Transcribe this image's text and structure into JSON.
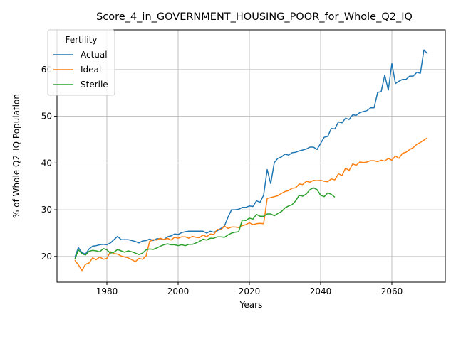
{
  "chart_data": {
    "type": "line",
    "title": "Score_4_in_GOVERNMENT_HOUSING_POOR_for_Whole_Q2_IQ",
    "xlabel": "Years",
    "ylabel": "% of Whole Q2_IQ Population",
    "xlim": [
      1966,
      2075
    ],
    "ylim": [
      14.5,
      68.5
    ],
    "xticks": [
      1980,
      2000,
      2020,
      2040,
      2060
    ],
    "yticks": [
      20,
      30,
      40,
      50,
      60
    ],
    "grid": true,
    "legend": {
      "title": "Fertility",
      "placement": "top-left"
    },
    "series": [
      {
        "name": "Actual",
        "color": "#1f77b4",
        "x": [
          1971,
          1972,
          1973,
          1974,
          1975,
          1976,
          1977,
          1978,
          1979,
          1980,
          1981,
          1982,
          1983,
          1984,
          1985,
          1986,
          1987,
          1988,
          1989,
          1990,
          1991,
          1992,
          1993,
          1994,
          1995,
          1996,
          1997,
          1998,
          1999,
          2000,
          2001,
          2002,
          2003,
          2004,
          2005,
          2006,
          2007,
          2008,
          2009,
          2010,
          2011,
          2012,
          2013,
          2014,
          2015,
          2016,
          2017,
          2018,
          2019,
          2020,
          2021,
          2022,
          2023,
          2024,
          2025,
          2026,
          2027,
          2028,
          2029,
          2030,
          2031,
          2032,
          2033,
          2034,
          2035,
          2036,
          2037,
          2038,
          2039,
          2040,
          2041,
          2042,
          2043,
          2044,
          2045,
          2046,
          2047,
          2048,
          2049,
          2050,
          2051,
          2052,
          2053,
          2054,
          2055,
          2056,
          2057,
          2058,
          2059,
          2060,
          2061,
          2062,
          2063,
          2064,
          2065,
          2066,
          2067,
          2068,
          2069,
          2070
        ],
        "values": [
          19.8,
          21.9,
          20.8,
          20.5,
          21.6,
          22.2,
          22.3,
          22.5,
          22.6,
          22.5,
          22.9,
          23.6,
          24.3,
          23.6,
          23.6,
          23.6,
          23.4,
          23.2,
          22.9,
          23.3,
          23.4,
          23.7,
          23.4,
          23.8,
          23.8,
          23.6,
          24.2,
          24.4,
          24.8,
          24.7,
          25.1,
          25.3,
          25.4,
          25.4,
          25.4,
          25.4,
          25.4,
          25.0,
          25.4,
          25.2,
          25.5,
          26.0,
          26.5,
          28.4,
          30.0,
          30.0,
          30.1,
          30.5,
          30.5,
          30.8,
          30.7,
          31.9,
          31.6,
          33.1,
          38.6,
          35.6,
          40.1,
          41.0,
          41.3,
          41.9,
          41.7,
          42.2,
          42.3,
          42.6,
          42.8,
          43.0,
          43.4,
          43.4,
          42.9,
          44.2,
          45.5,
          45.7,
          47.4,
          47.3,
          48.8,
          48.6,
          49.6,
          49.3,
          50.3,
          50.2,
          50.8,
          51.0,
          51.2,
          51.8,
          51.8,
          55.1,
          55.3,
          58.8,
          55.6,
          61.3,
          57.0,
          57.5,
          57.9,
          57.9,
          58.6,
          58.6,
          59.4,
          59.2,
          64.2,
          63.4
        ]
      },
      {
        "name": "Ideal",
        "color": "#ff7f0e",
        "x": [
          1971,
          1972,
          1973,
          1974,
          1975,
          1976,
          1977,
          1978,
          1979,
          1980,
          1981,
          1982,
          1983,
          1984,
          1985,
          1986,
          1987,
          1988,
          1989,
          1990,
          1991,
          1992,
          1993,
          1994,
          1995,
          1996,
          1997,
          1998,
          1999,
          2000,
          2001,
          2002,
          2003,
          2004,
          2005,
          2006,
          2007,
          2008,
          2009,
          2010,
          2011,
          2012,
          2013,
          2014,
          2015,
          2016,
          2017,
          2018,
          2019,
          2020,
          2021,
          2022,
          2023,
          2024,
          2025,
          2026,
          2027,
          2028,
          2029,
          2030,
          2031,
          2032,
          2033,
          2034,
          2035,
          2036,
          2037,
          2038,
          2039,
          2040,
          2041,
          2042,
          2043,
          2044,
          2045,
          2046,
          2047,
          2048,
          2049,
          2050,
          2051,
          2052,
          2053,
          2054,
          2055,
          2056,
          2057,
          2058,
          2059,
          2060,
          2061,
          2062,
          2063,
          2064,
          2065,
          2066,
          2067,
          2068,
          2069,
          2070
        ],
        "values": [
          19.2,
          18.2,
          17.0,
          18.3,
          18.6,
          19.7,
          19.3,
          19.9,
          19.4,
          19.6,
          21.0,
          20.6,
          20.5,
          20.1,
          19.9,
          19.7,
          19.3,
          18.9,
          19.6,
          19.4,
          20.1,
          23.2,
          23.6,
          23.5,
          23.9,
          23.6,
          23.9,
          23.5,
          24.1,
          23.9,
          24.2,
          24.2,
          23.9,
          24.3,
          24.1,
          24.0,
          24.6,
          24.2,
          24.8,
          24.7,
          25.8,
          25.7,
          26.5,
          26.0,
          26.3,
          26.3,
          26.2,
          26.6,
          26.8,
          27.2,
          26.8,
          27.0,
          27.1,
          27.0,
          32.4,
          32.6,
          32.8,
          33.0,
          33.5,
          33.9,
          34.1,
          34.6,
          34.7,
          35.5,
          35.4,
          36.1,
          35.9,
          36.3,
          36.2,
          36.3,
          36.1,
          36.0,
          36.6,
          36.4,
          37.7,
          37.3,
          38.9,
          38.4,
          39.8,
          39.5,
          40.2,
          40.1,
          40.2,
          40.5,
          40.5,
          40.3,
          40.6,
          40.4,
          41.0,
          40.6,
          41.5,
          41.0,
          42.1,
          42.3,
          42.9,
          43.3,
          44.0,
          44.4,
          44.9,
          45.4
        ]
      },
      {
        "name": "Sterile",
        "color": "#2ca02c",
        "x": [
          1971,
          1972,
          1973,
          1974,
          1975,
          1976,
          1977,
          1978,
          1979,
          1980,
          1981,
          1982,
          1983,
          1984,
          1985,
          1986,
          1987,
          1988,
          1989,
          1990,
          1991,
          1992,
          1993,
          1994,
          1995,
          1996,
          1997,
          1998,
          1999,
          2000,
          2001,
          2002,
          2003,
          2004,
          2005,
          2006,
          2007,
          2008,
          2009,
          2010,
          2011,
          2012,
          2013,
          2014,
          2015,
          2016,
          2017,
          2018,
          2019,
          2020,
          2021,
          2022,
          2023,
          2024,
          2025,
          2026,
          2027,
          2028,
          2029,
          2030,
          2031,
          2032,
          2033,
          2034,
          2035,
          2036,
          2037,
          2038,
          2039,
          2040,
          2041,
          2042,
          2043,
          2044
        ],
        "values": [
          19.4,
          21.4,
          20.6,
          20.3,
          21.1,
          21.3,
          21.2,
          21.0,
          21.7,
          21.4,
          20.7,
          20.9,
          21.5,
          21.2,
          20.9,
          21.2,
          21.0,
          20.7,
          20.4,
          20.7,
          21.4,
          21.6,
          21.5,
          21.8,
          22.2,
          22.5,
          22.7,
          22.5,
          22.5,
          22.3,
          22.5,
          22.3,
          22.6,
          22.6,
          22.9,
          23.2,
          23.7,
          23.5,
          23.9,
          23.9,
          24.2,
          24.2,
          24.1,
          24.6,
          25.0,
          25.2,
          25.3,
          27.8,
          27.7,
          28.2,
          28.0,
          29.0,
          28.6,
          28.6,
          29.1,
          29.1,
          28.7,
          29.2,
          29.6,
          30.4,
          30.8,
          31.1,
          31.9,
          33.1,
          32.9,
          33.4,
          34.3,
          34.7,
          34.3,
          33.1,
          32.8,
          33.6,
          33.3,
          32.7
        ]
      }
    ]
  }
}
